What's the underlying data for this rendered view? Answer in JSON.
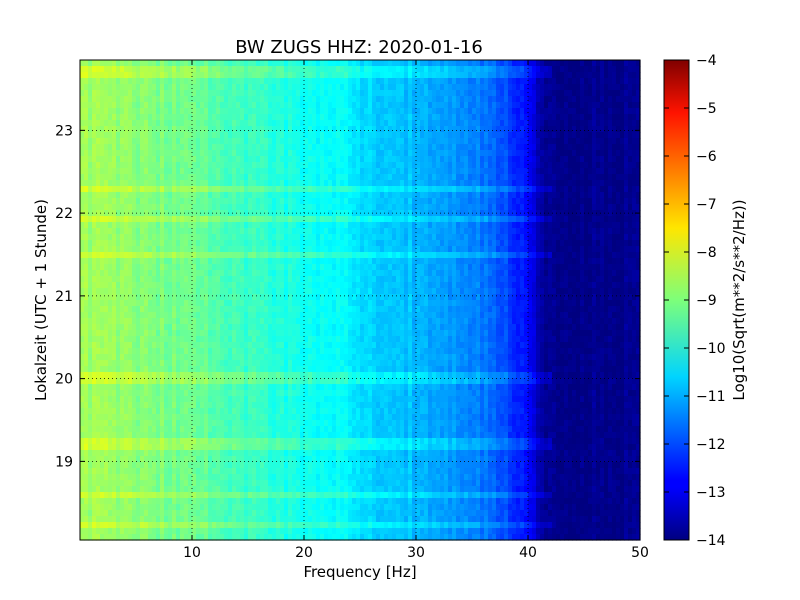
{
  "chart_data": {
    "type": "heatmap",
    "title": "BW ZUGS HHZ: 2020-01-16",
    "xlabel": "Frequency [Hz]",
    "ylabel": "Lokalzeit (UTC + 1 Stunde)",
    "xlim": [
      0,
      50
    ],
    "ylim": [
      23.85,
      18.05
    ],
    "x_ticks": [
      10,
      20,
      30,
      40,
      50
    ],
    "y_ticks": [
      19,
      20,
      21,
      22,
      23
    ],
    "grid": true,
    "colormap": "jet",
    "colorbar": {
      "label": "Log10(Sqrt(m**2/s**2/Hz))",
      "range": [
        -14,
        -4
      ],
      "ticks": [
        -4,
        -5,
        -6,
        -7,
        -8,
        -9,
        -10,
        -11,
        -12,
        -13,
        -14
      ]
    },
    "value_profile": {
      "frequency_hz": [
        0,
        5,
        10,
        15,
        20,
        24,
        25,
        30,
        33,
        36,
        39,
        41,
        42,
        50
      ],
      "log10_amplitude": [
        -8.7,
        -8.9,
        -9.2,
        -9.7,
        -10.1,
        -10.3,
        -10.6,
        -10.9,
        -11.2,
        -11.6,
        -12.3,
        -13.4,
        -13.9,
        -13.9
      ]
    },
    "horizontal_features_hours": [
      18.25,
      18.6,
      19.2,
      20.0,
      21.5,
      21.95,
      22.3,
      23.7
    ]
  }
}
